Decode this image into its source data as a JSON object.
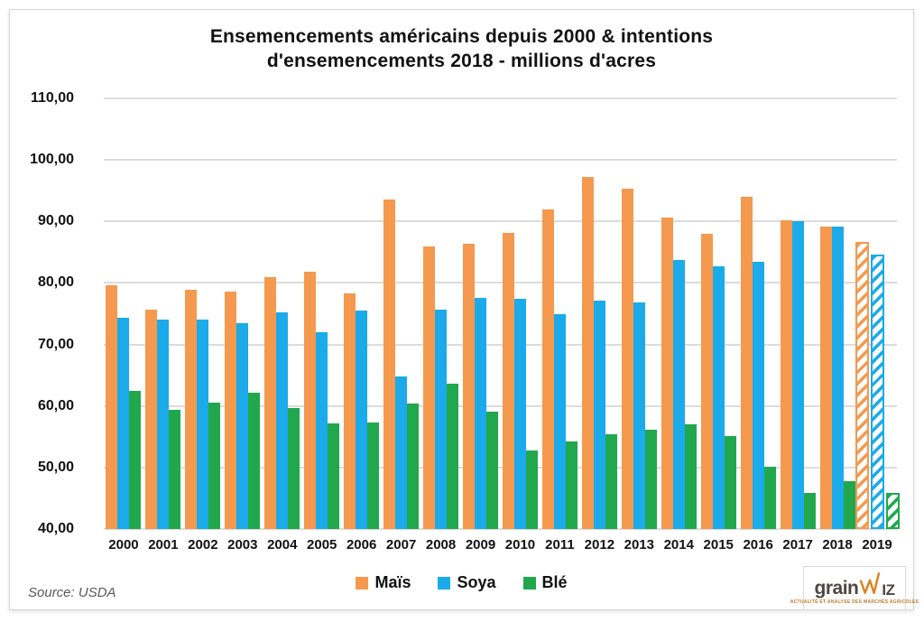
{
  "title": {
    "line1": "Ensemencements américains depuis 2000 & intentions",
    "line2": "d'ensemencements 2018 - millions d'acres"
  },
  "chart_data": {
    "type": "bar",
    "categories": [
      "2000",
      "2001",
      "2002",
      "2003",
      "2004",
      "2005",
      "2006",
      "2007",
      "2008",
      "2009",
      "2010",
      "2011",
      "2012",
      "2013",
      "2014",
      "2015",
      "2016",
      "2017",
      "2018",
      "2019"
    ],
    "series": [
      {
        "name": "Maïs",
        "color": "#F4994E",
        "values": [
          79.6,
          75.7,
          78.9,
          78.6,
          81.0,
          81.8,
          78.3,
          93.5,
          86.0,
          86.4,
          88.2,
          91.9,
          97.2,
          95.4,
          90.6,
          88.0,
          94.0,
          90.2,
          89.1,
          86.6
        ]
      },
      {
        "name": "Soya",
        "color": "#1BAAEA",
        "values": [
          74.3,
          74.1,
          74.0,
          73.5,
          75.2,
          72.0,
          75.5,
          64.8,
          75.7,
          77.5,
          77.4,
          75.0,
          77.2,
          76.9,
          83.8,
          82.7,
          83.5,
          90.1,
          89.2,
          84.6
        ]
      },
      {
        "name": "Blé",
        "color": "#21A84D",
        "values": [
          62.5,
          59.4,
          60.5,
          62.2,
          59.7,
          57.2,
          57.3,
          60.4,
          63.6,
          59.1,
          52.7,
          54.3,
          55.4,
          56.2,
          57.0,
          55.1,
          50.1,
          45.9,
          47.8,
          45.8
        ]
      }
    ],
    "hatched_category": "2019",
    "ylim": [
      40,
      110
    ],
    "y_ticks": [
      110,
      100,
      90,
      80,
      70,
      60,
      50,
      40
    ],
    "y_tick_labels": [
      "110,00",
      "100,00",
      "90,00",
      "80,00",
      "70,00",
      "60,00",
      "50,00",
      "40,00"
    ],
    "grid": true,
    "legend_position": "bottom"
  },
  "source": {
    "label": "Source: USDA"
  },
  "logo": {
    "part1": "grain",
    "part2": "IZ",
    "tagline": "ACTUALITÉ ET ANALYSE DES MARCHÉS AGRICOLES",
    "accent_color": "#E0821F"
  },
  "colors": {
    "grid": "#DCDCDC",
    "text": "#111111",
    "source_text": "#595959"
  }
}
